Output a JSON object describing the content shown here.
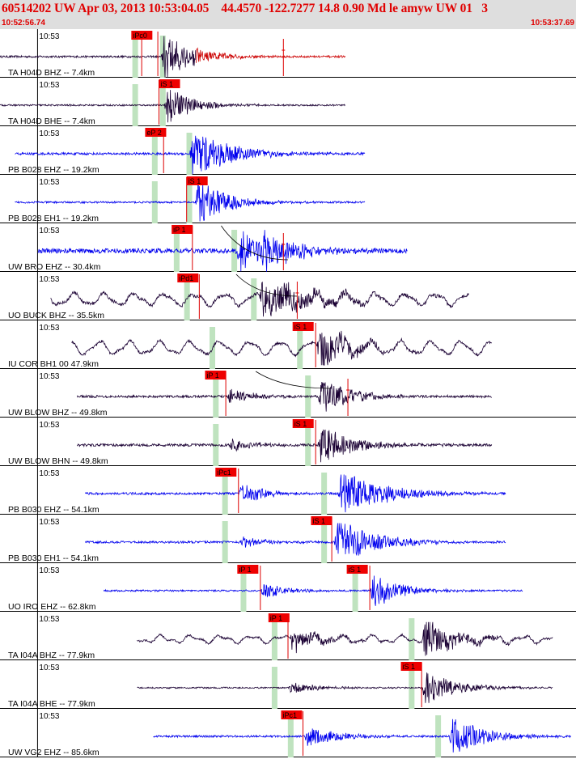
{
  "header": {
    "title": "60514202 UW Apr 03, 2013 10:53:04.05    44.4570 -122.7277 14.8 0.90 Md le amyw UW 01   3",
    "start_time": "10:52:56.74",
    "end_time": "10:53:37.69"
  },
  "colors": {
    "header_bg": "#dedede",
    "header_text": "#e00000",
    "pick_box": "#ee0000",
    "pick_line": "#dd0000",
    "pick_window": "#bfe3bf",
    "trace_blue": "#0000ee",
    "trace_dark": "#1a0033",
    "trace_red_tail": "#cc0000",
    "theoretical_curve": "#000000"
  },
  "chart_data": {
    "type": "seismogram",
    "time_range": [
      "10:52:56.74",
      "10:53:37.69"
    ],
    "minute_label": "10:53",
    "panels": [
      {
        "label": "TA H04D BHZ -- 7.4km",
        "color": "dark",
        "amp": 0.55,
        "noise": 0.05,
        "picks": [
          {
            "text": "iPc0",
            "t": 11.4,
            "line": 12.3
          },
          {
            "text": "",
            "t": 13.7,
            "line": 13.7
          }
        ],
        "windows": [
          11.7,
          14.1
        ],
        "signal": [
          {
            "t": 14.0,
            "a": 1.0,
            "d": 4.0
          }
        ],
        "start": 0.0,
        "end": 30.0,
        "spike": {
          "t": 24.6
        },
        "red_tail": true
      },
      {
        "label": "TA H04D BHE -- 7.4km",
        "color": "dark",
        "amp": 0.45,
        "noise": 0.05,
        "picks": [
          {
            "text": "iS 1",
            "t": 13.8,
            "line": 13.8
          }
        ],
        "windows": [
          11.7,
          14.1
        ],
        "signal": [
          {
            "t": 14.2,
            "a": 0.9,
            "d": 3.5
          }
        ],
        "start": 0.0,
        "end": 30.0
      },
      {
        "label": "PB B028 EHZ -- 19.2km",
        "color": "blue",
        "amp": 0.55,
        "noise": 0.06,
        "picks": [
          {
            "text": "eP 2",
            "t": 12.6,
            "line": 14.2
          }
        ],
        "windows": [
          13.4,
          16.4
        ],
        "signal": [
          {
            "t": 16.4,
            "a": 1.0,
            "d": 5.0
          }
        ],
        "start": 1.3,
        "end": 31.7
      },
      {
        "label": "PB B028 EH1 -- 19.2km",
        "color": "blue",
        "amp": 0.5,
        "noise": 0.05,
        "picks": [
          {
            "text": "iS 1",
            "t": 16.2,
            "line": 16.2
          }
        ],
        "windows": [
          13.4,
          16.4
        ],
        "signal": [
          {
            "t": 16.9,
            "a": 1.0,
            "d": 4.0
          }
        ],
        "start": 1.3,
        "end": 31.7
      },
      {
        "label": "UW BRO EHZ -- 30.4km",
        "color": "blue",
        "amp": 0.55,
        "noise": 0.12,
        "picks": [
          {
            "text": "iP 1",
            "t": 14.9,
            "line": 16.7
          }
        ],
        "windows": [
          15.3,
          20.3
        ],
        "signal": [
          {
            "t": 20.4,
            "a": 0.9,
            "d": 3.5
          },
          {
            "t": 22.5,
            "a": 0.8,
            "d": 4.0
          }
        ],
        "start": 3.3,
        "end": 35.4,
        "curve": {
          "from": [
            19.2,
            0.05
          ],
          "to": [
            25.0,
            0.75
          ]
        },
        "spike": {
          "t": 24.6
        }
      },
      {
        "label": "UO BUCK BHZ -- 35.5km",
        "color": "dark",
        "amp": 0.45,
        "noise": 0.1,
        "lowfreq": 0.9,
        "picks": [
          {
            "text": "iPd1",
            "t": 15.4,
            "line": 17.3
          }
        ],
        "windows": [
          16.2,
          22.0
        ],
        "signal": [
          {
            "t": 22.5,
            "a": 1.0,
            "d": 6.0
          }
        ],
        "start": 4.4,
        "end": 40.7,
        "curve": {
          "from": [
            20.5,
            0.05
          ],
          "to": [
            25.8,
            0.5
          ]
        },
        "spike": {
          "t": 25.8
        }
      },
      {
        "label": "IU COR BH1 00 47.9km",
        "color": "dark",
        "amp": 0.45,
        "noise": 0.08,
        "lowfreq": 1.0,
        "picks": [
          {
            "text": "iS 1",
            "t": 25.4,
            "line": 27.4
          }
        ],
        "windows": [
          18.4,
          26.0
        ],
        "signal": [
          {
            "t": 27.5,
            "a": 1.0,
            "d": 4.0
          }
        ],
        "start": 6.2,
        "end": 42.7
      },
      {
        "label": "UW BLOW BHZ -- 49.8km",
        "color": "dark",
        "amp": 0.4,
        "noise": 0.08,
        "picks": [
          {
            "text": "iP 1",
            "t": 17.8,
            "line": 19.6
          }
        ],
        "windows": [
          18.7,
          26.7
        ],
        "signal": [
          {
            "t": 19.7,
            "a": 0.45,
            "d": 3.0
          },
          {
            "t": 27.6,
            "a": 1.0,
            "d": 4.0
          }
        ],
        "start": 6.7,
        "end": 42.7,
        "curve": {
          "from": [
            22.2,
            0.05
          ],
          "to": [
            28.7,
            0.4
          ]
        },
        "spike": {
          "t": 30.2
        }
      },
      {
        "label": "UW BLOW BHN -- 49.8km",
        "color": "dark",
        "amp": 0.45,
        "noise": 0.08,
        "picks": [
          {
            "text": "iS 1",
            "t": 25.4,
            "line": 27.4
          }
        ],
        "windows": [
          18.7,
          26.7
        ],
        "signal": [
          {
            "t": 19.8,
            "a": 0.3,
            "d": 3.0
          },
          {
            "t": 27.6,
            "a": 1.0,
            "d": 4.0
          }
        ],
        "start": 6.7,
        "end": 42.7
      },
      {
        "label": "PB B030 EHZ -- 54.1km",
        "color": "blue",
        "amp": 0.5,
        "noise": 0.06,
        "picks": [
          {
            "text": "iPc1",
            "t": 18.7,
            "line": 20.7
          }
        ],
        "windows": [
          19.5,
          28.1
        ],
        "signal": [
          {
            "t": 20.7,
            "a": 0.5,
            "d": 3.0
          },
          {
            "t": 29.3,
            "a": 1.0,
            "d": 6.0
          }
        ],
        "start": 7.4,
        "end": 43.9
      },
      {
        "label": "PB B030 EH1 -- 54.1km",
        "color": "blue",
        "amp": 0.5,
        "noise": 0.06,
        "picks": [
          {
            "text": "iS 1",
            "t": 27.0,
            "line": 28.8
          }
        ],
        "windows": [
          19.5,
          28.1
        ],
        "signal": [
          {
            "t": 20.8,
            "a": 0.25,
            "d": 3.0
          },
          {
            "t": 29.0,
            "a": 1.0,
            "d": 5.0
          }
        ],
        "start": 7.4,
        "end": 43.9
      },
      {
        "label": "UO IRO EHZ -- 62.8km",
        "color": "blue",
        "amp": 0.4,
        "noise": 0.06,
        "picks": [
          {
            "text": "iP 1",
            "t": 20.6,
            "line": 22.6
          },
          {
            "text": "iS 1",
            "t": 30.1,
            "line": 32.1
          }
        ],
        "windows": [
          21.1,
          30.8
        ],
        "signal": [
          {
            "t": 22.6,
            "a": 0.4,
            "d": 3.0
          },
          {
            "t": 32.1,
            "a": 1.0,
            "d": 3.5
          }
        ],
        "start": 9.0,
        "end": 45.4
      },
      {
        "label": "TA I04A BHZ -- 77.9km",
        "color": "dark",
        "amp": 0.45,
        "noise": 0.06,
        "lowfreq": 0.5,
        "picks": [
          {
            "text": "iP 1",
            "t": 23.3,
            "line": 25.0
          }
        ],
        "windows": [
          23.8,
          35.7
        ],
        "signal": [
          {
            "t": 25.1,
            "a": 0.5,
            "d": 4.0
          },
          {
            "t": 36.6,
            "a": 1.0,
            "d": 4.0
          }
        ],
        "start": 11.9,
        "end": 48.0
      },
      {
        "label": "TA I04A BHE -- 77.9km",
        "color": "dark",
        "amp": 0.4,
        "noise": 0.05,
        "picks": [
          {
            "text": "iS 1",
            "t": 34.8,
            "line": 36.6
          }
        ],
        "windows": [
          23.8,
          35.7
        ],
        "signal": [
          {
            "t": 25.0,
            "a": 0.3,
            "d": 4.0
          },
          {
            "t": 36.6,
            "a": 1.0,
            "d": 4.0
          }
        ],
        "start": 11.9,
        "end": 48.0
      },
      {
        "label": "UW VG2 EHZ -- 85.6km",
        "color": "blue",
        "amp": 0.45,
        "noise": 0.06,
        "picks": [
          {
            "text": "iPc1",
            "t": 24.4,
            "line": 26.3
          }
        ],
        "windows": [
          25.2,
          38.0
        ],
        "signal": [
          {
            "t": 26.4,
            "a": 0.5,
            "d": 4.0
          },
          {
            "t": 39.0,
            "a": 1.0,
            "d": 4.0
          }
        ],
        "start": 13.3,
        "end": 49.6
      }
    ]
  }
}
